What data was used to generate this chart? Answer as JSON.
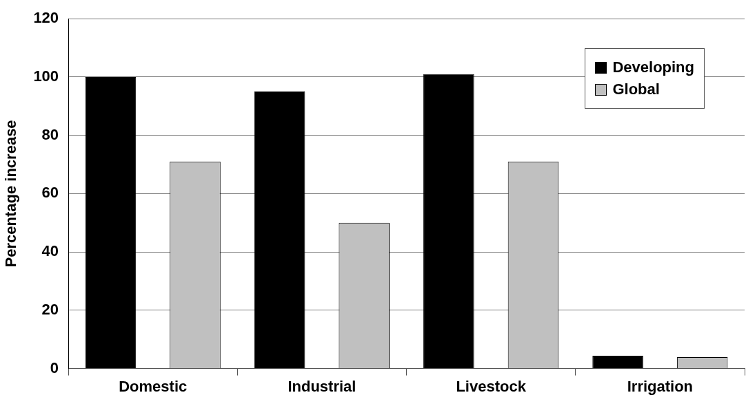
{
  "chart_data": {
    "type": "bar",
    "ylabel": "Percentage increase",
    "categories": [
      "Domestic",
      "Industrial",
      "Livestock",
      "Irrigation"
    ],
    "series": [
      {
        "name": "Developing",
        "color": "#000000",
        "values": [
          100,
          95,
          101,
          4.4
        ]
      },
      {
        "name": "Global",
        "color": "#c0c0c0",
        "values": [
          71,
          50,
          71,
          3.9
        ]
      }
    ],
    "ylim": [
      0,
      120
    ],
    "yticks": [
      0,
      20,
      40,
      60,
      80,
      100,
      120
    ],
    "grid": "y",
    "legend": "top right"
  }
}
